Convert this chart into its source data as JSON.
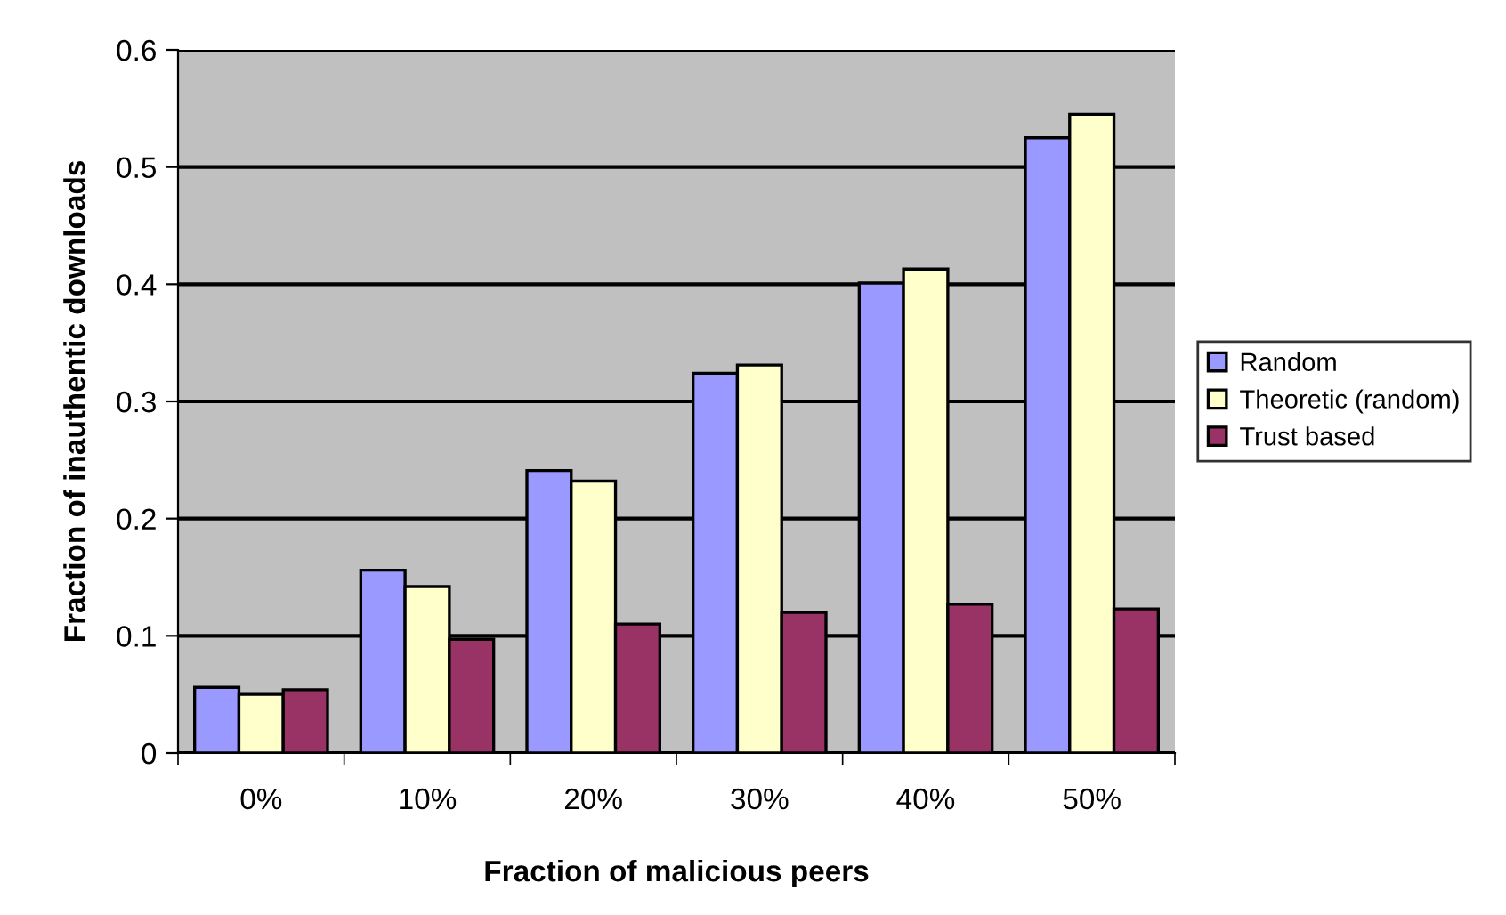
{
  "chart_data": {
    "type": "bar",
    "xlabel": "Fraction of malicious peers",
    "ylabel": "Fraction of inauthentic downloads",
    "categories": [
      "0%",
      "10%",
      "20%",
      "30%",
      "40%",
      "50%"
    ],
    "series": [
      {
        "name": "Random",
        "color": "#9999ff",
        "values": [
          0.056,
          0.156,
          0.241,
          0.324,
          0.401,
          0.525
        ]
      },
      {
        "name": "Theoretic (random)",
        "color": "#ffffcc",
        "values": [
          0.05,
          0.142,
          0.232,
          0.331,
          0.413,
          0.545
        ]
      },
      {
        "name": "Trust based",
        "color": "#993366",
        "values": [
          0.054,
          0.097,
          0.11,
          0.12,
          0.127,
          0.123
        ]
      }
    ],
    "ylim": [
      0,
      0.6
    ],
    "yticks": [
      {
        "value": 0,
        "label": "0"
      },
      0.1,
      0.2,
      0.3,
      0.4,
      0.5,
      0.6
    ],
    "grid": "y",
    "legend": "right"
  }
}
